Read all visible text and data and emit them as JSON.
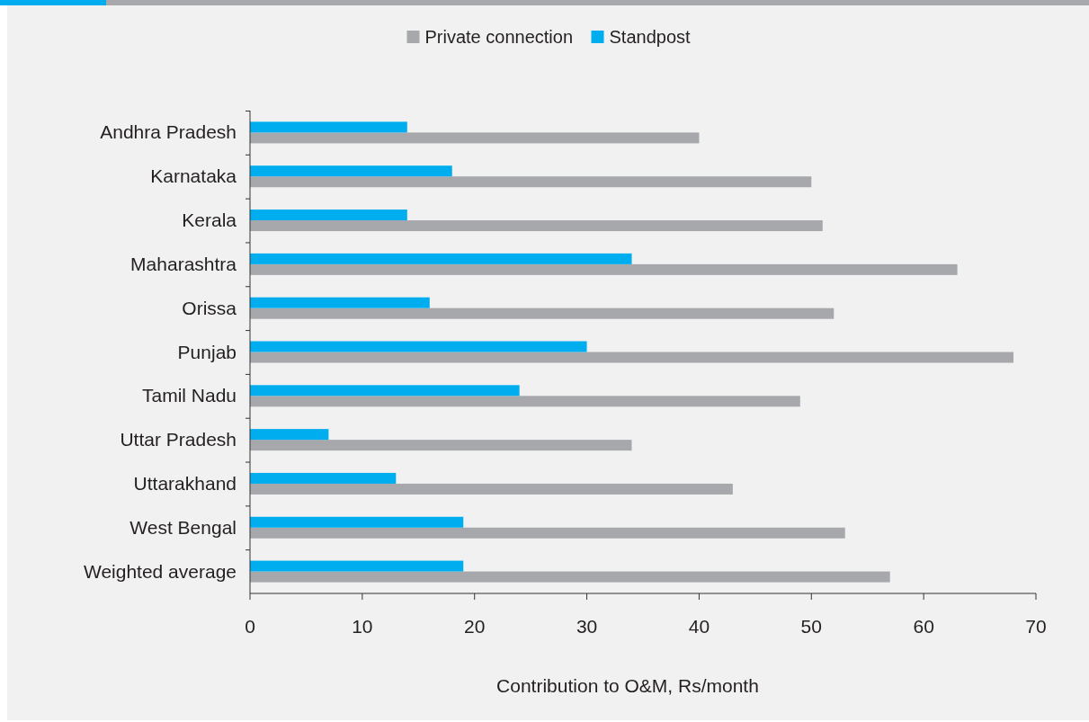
{
  "chart_data": {
    "type": "bar",
    "orientation": "horizontal",
    "xlabel": "Contribution to O&M, Rs/month",
    "categories": [
      "Andhra Pradesh",
      "Karnataka",
      "Kerala",
      "Maharashtra",
      "Orissa",
      "Punjab",
      "Tamil Nadu",
      "Uttar Pradesh",
      "Uttarakhand",
      "West Bengal",
      "Weighted average"
    ],
    "series": [
      {
        "name": "Private connection",
        "color": "#a7a8ab",
        "values": [
          40,
          50,
          51,
          63,
          52,
          68,
          49,
          34,
          43,
          53,
          57
        ]
      },
      {
        "name": "Standpost",
        "color": "#00aeef",
        "values": [
          14,
          18,
          14,
          34,
          16,
          30,
          24,
          7,
          13,
          19,
          19
        ]
      }
    ],
    "xlim": [
      0,
      70
    ],
    "xticks": [
      0,
      10,
      20,
      30,
      40,
      50,
      60,
      70
    ],
    "grid": false,
    "legend": "top"
  }
}
